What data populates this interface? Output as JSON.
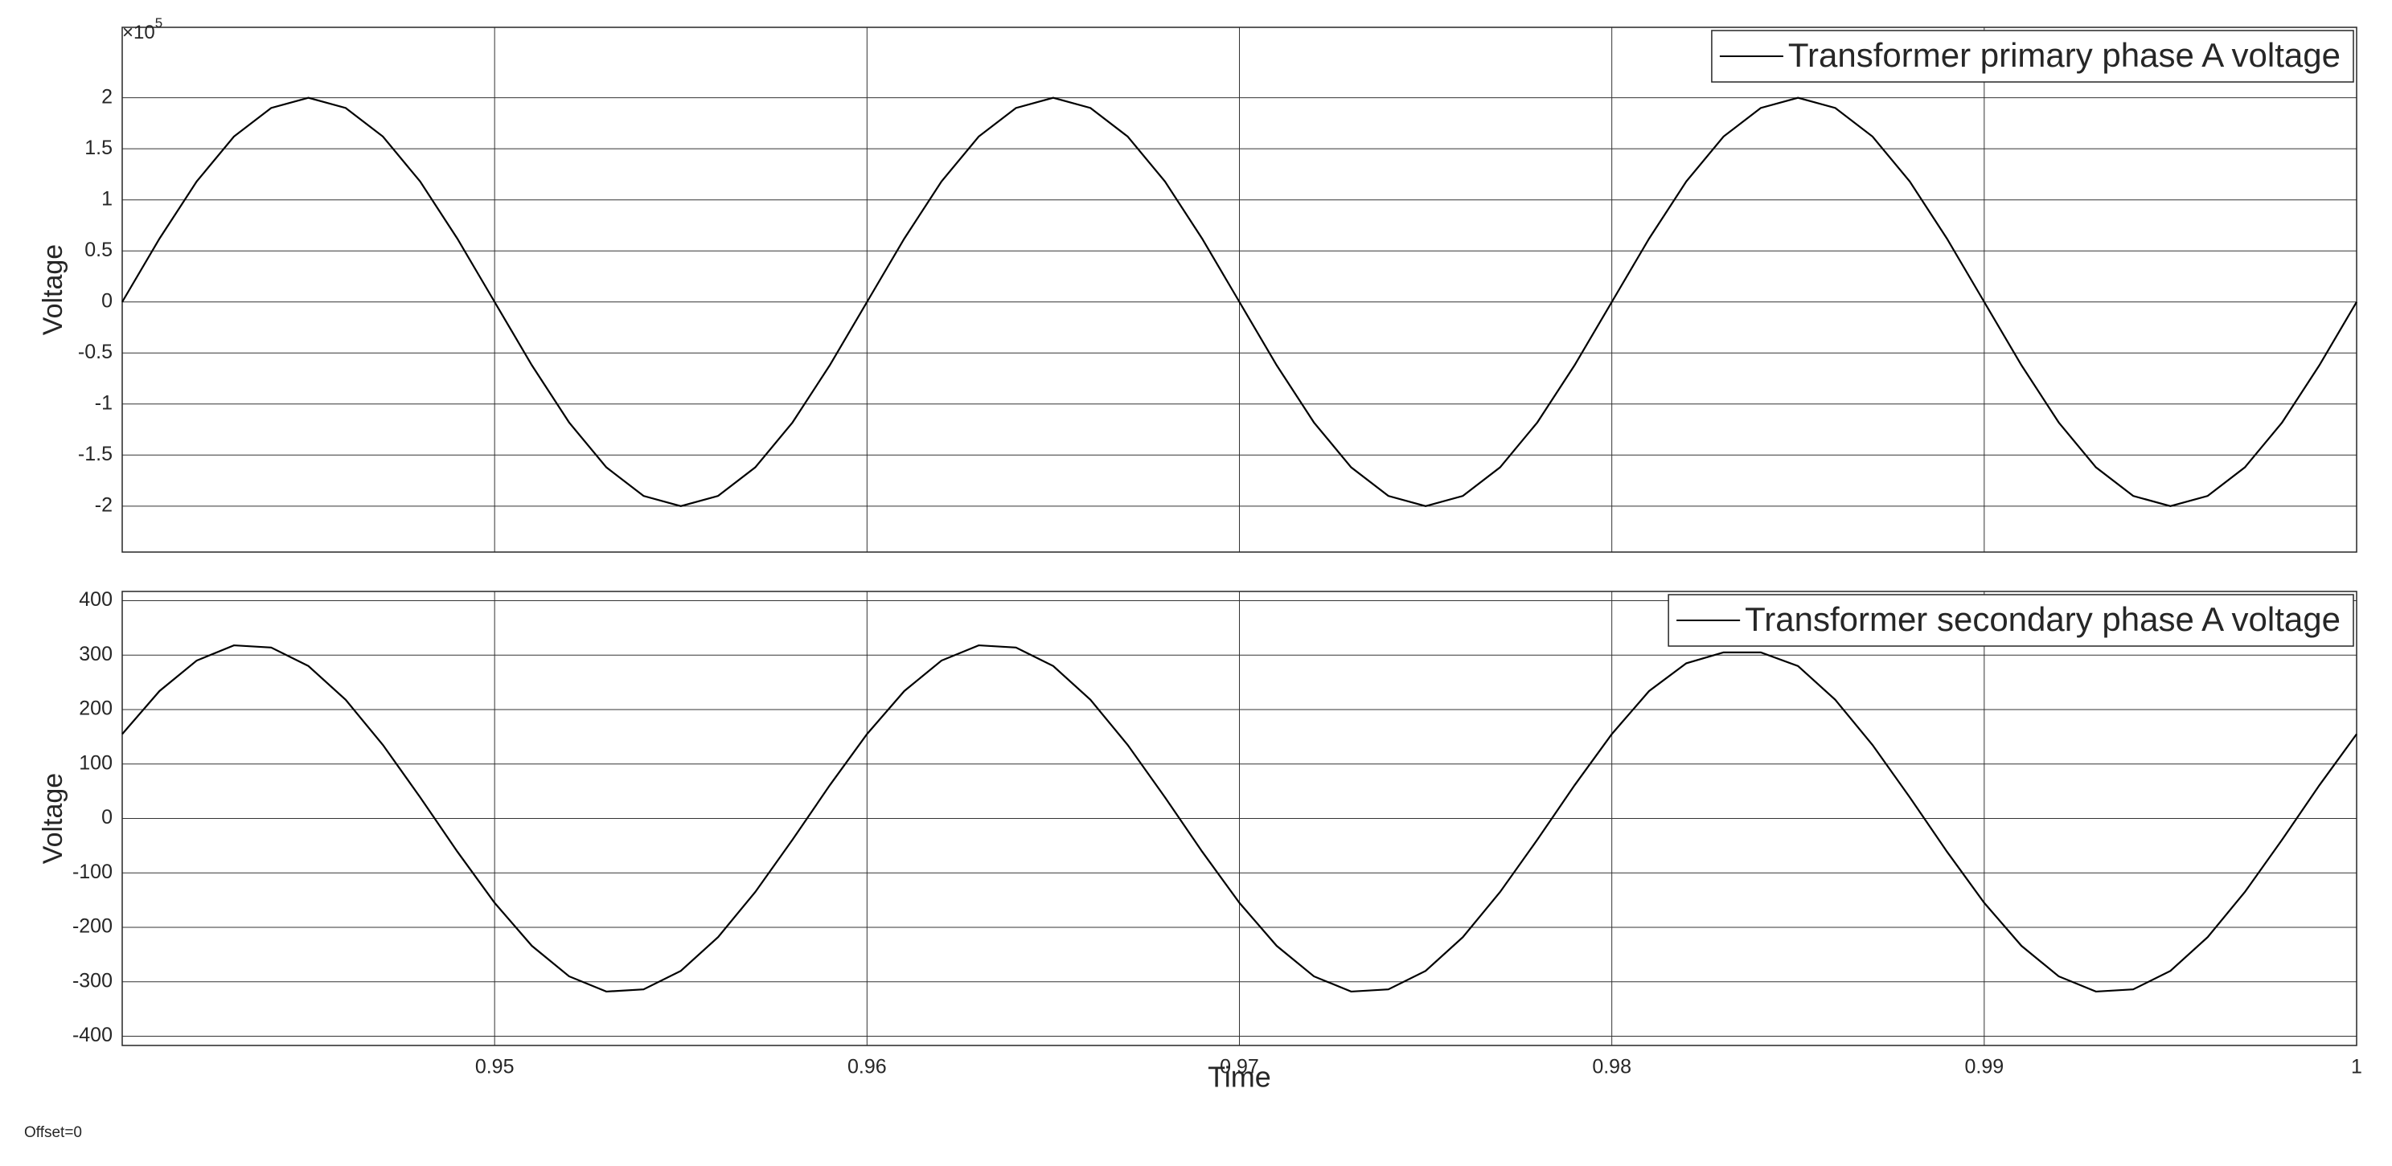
{
  "offset_label": "Offset=0",
  "chart_data": [
    {
      "type": "line",
      "y_label": "Voltage",
      "y_multiplier": "×10",
      "y_exponent": "5",
      "x": [
        0.94,
        0.941,
        0.942,
        0.943,
        0.944,
        0.945,
        0.946,
        0.947,
        0.948,
        0.949,
        0.95,
        0.951,
        0.952,
        0.953,
        0.954,
        0.955,
        0.956,
        0.957,
        0.958,
        0.959,
        0.96,
        0.961,
        0.962,
        0.963,
        0.964,
        0.965,
        0.966,
        0.967,
        0.968,
        0.969,
        0.97,
        0.971,
        0.972,
        0.973,
        0.974,
        0.975,
        0.976,
        0.977,
        0.978,
        0.979,
        0.98,
        0.981,
        0.982,
        0.983,
        0.984,
        0.985,
        0.986,
        0.987,
        0.988,
        0.989,
        0.99,
        0.991,
        0.992,
        0.993,
        0.994,
        0.995,
        0.996,
        0.997,
        0.998,
        0.999,
        1
      ],
      "series": [
        {
          "name": "Transformer primary phase A voltage",
          "color": "#000000",
          "values": [
            0,
            0.62,
            1.18,
            1.62,
            1.9,
            2,
            1.9,
            1.62,
            1.18,
            0.62,
            0,
            -0.62,
            -1.18,
            -1.62,
            -1.9,
            -2,
            -1.9,
            -1.62,
            -1.18,
            -0.62,
            0,
            0.62,
            1.18,
            1.62,
            1.9,
            2,
            1.9,
            1.62,
            1.18,
            0.62,
            0,
            -0.62,
            -1.18,
            -1.62,
            -1.9,
            -2,
            -1.9,
            -1.62,
            -1.18,
            -0.62,
            0,
            0.62,
            1.18,
            1.62,
            1.9,
            2,
            1.9,
            1.62,
            1.18,
            0.62,
            0,
            -0.62,
            -1.18,
            -1.62,
            -1.9,
            -2,
            -1.9,
            -1.62,
            -1.18,
            -0.62,
            0
          ]
        }
      ],
      "xlim": [
        0.94,
        1
      ],
      "ylim": [
        -2.45,
        2.69
      ],
      "xticks": [
        0.95,
        0.96,
        0.97,
        0.98,
        0.99,
        1
      ],
      "xtick_labels": false,
      "yticks": [
        -2,
        -1.5,
        -1,
        -0.5,
        0,
        0.5,
        1,
        1.5,
        2
      ],
      "grid": true,
      "legend": "upper right"
    },
    {
      "type": "line",
      "y_label": "Voltage",
      "x_label": "Time",
      "x": [
        0.94,
        0.941,
        0.942,
        0.943,
        0.944,
        0.945,
        0.946,
        0.947,
        0.948,
        0.949,
        0.95,
        0.951,
        0.952,
        0.953,
        0.954,
        0.955,
        0.956,
        0.957,
        0.958,
        0.959,
        0.96,
        0.961,
        0.962,
        0.963,
        0.964,
        0.965,
        0.966,
        0.967,
        0.968,
        0.969,
        0.97,
        0.971,
        0.972,
        0.973,
        0.974,
        0.975,
        0.976,
        0.977,
        0.978,
        0.979,
        0.98,
        0.981,
        0.982,
        0.983,
        0.984,
        0.985,
        0.986,
        0.987,
        0.988,
        0.989,
        0.99,
        0.991,
        0.992,
        0.993,
        0.994,
        0.995,
        0.996,
        0.997,
        0.998,
        0.999,
        1
      ],
      "series": [
        {
          "name": "Transformer secondary phase A voltage",
          "color": "#000000",
          "values": [
            155,
            234,
            290,
            318,
            314,
            280,
            218,
            135,
            39,
            -61,
            -155,
            -234,
            -290,
            -318,
            -314,
            -280,
            -218,
            -135,
            -39,
            61,
            155,
            234,
            290,
            318,
            314,
            280,
            218,
            135,
            39,
            -61,
            -155,
            -234,
            -290,
            -318,
            -314,
            -280,
            -218,
            -135,
            -39,
            61,
            155,
            234,
            285,
            305,
            305,
            280,
            218,
            135,
            39,
            -61,
            -155,
            -234,
            -290,
            -318,
            -314,
            -280,
            -218,
            -135,
            -39,
            61,
            155
          ]
        }
      ],
      "xlim": [
        0.94,
        1
      ],
      "ylim": [
        -417,
        417
      ],
      "xticks": [
        0.95,
        0.96,
        0.97,
        0.98,
        0.99,
        1
      ],
      "xtick_labels": true,
      "yticks": [
        -400,
        -300,
        -200,
        -100,
        0,
        100,
        200,
        300,
        400
      ],
      "grid": true,
      "legend": "upper right"
    }
  ]
}
